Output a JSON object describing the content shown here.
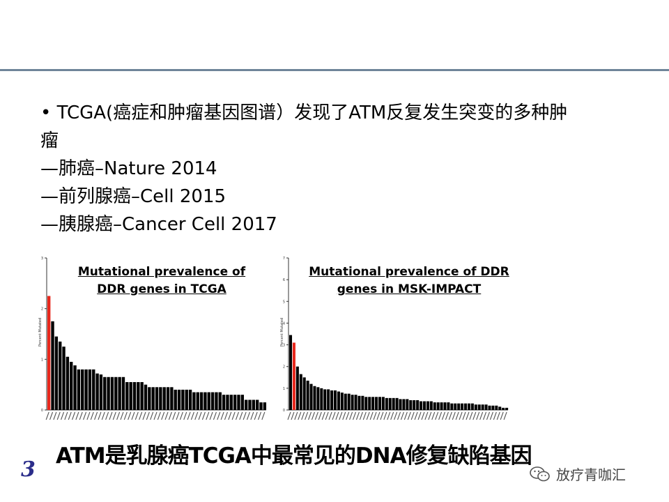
{
  "slide": {
    "bullet_intro": "TCGA(癌症和肿瘤基因图谱）发现了ATM反复发生突变的多种肿",
    "bullet_intro_cont": "瘤",
    "items": [
      "—肺癌–Nature 2014",
      "—前列腺癌–Cell 2015",
      "—胰腺癌–Cancer Cell 2017"
    ],
    "caption": "ATM是乳腺癌TCGA中最常见的DNA修复缺陷基因",
    "slide_number": "3",
    "watermark": "放疗青咖汇",
    "colors": {
      "highlight": "#e8271c",
      "bar": "#000000",
      "rule": "#6f8599",
      "number": "#2b2d8a"
    }
  },
  "chart_data": [
    {
      "type": "bar",
      "title_line1": "Mutational prevalence of",
      "title_line2": "DDR genes in TCGA",
      "ylabel": "Percent Mutated",
      "ylim": [
        0,
        3
      ],
      "yticks": [
        "0",
        "1",
        "2",
        "3"
      ],
      "highlight_index": 0,
      "values": [
        2.25,
        1.75,
        1.45,
        1.35,
        1.25,
        1.05,
        0.95,
        0.88,
        0.8,
        0.8,
        0.8,
        0.8,
        0.8,
        0.72,
        0.7,
        0.65,
        0.65,
        0.65,
        0.65,
        0.65,
        0.65,
        0.55,
        0.55,
        0.55,
        0.55,
        0.55,
        0.5,
        0.45,
        0.45,
        0.45,
        0.45,
        0.45,
        0.45,
        0.45,
        0.4,
        0.4,
        0.4,
        0.4,
        0.4,
        0.35,
        0.35,
        0.35,
        0.35,
        0.35,
        0.35,
        0.35,
        0.35,
        0.3,
        0.3,
        0.3,
        0.3,
        0.3,
        0.3,
        0.2,
        0.2,
        0.2,
        0.2,
        0.15,
        0.15
      ]
    },
    {
      "type": "bar",
      "title_line1": "Mutational prevalence of DDR",
      "title_line2": "genes in MSK-IMPACT",
      "ylabel": "Percent Mutated",
      "ylim": [
        0,
        7
      ],
      "yticks": [
        "0",
        "1",
        "2",
        "3",
        "4",
        "5",
        "6",
        "7"
      ],
      "highlight_index": 1,
      "values": [
        3.45,
        3.1,
        2.0,
        1.65,
        1.5,
        1.35,
        1.2,
        1.1,
        1.05,
        1.0,
        0.95,
        0.95,
        0.9,
        0.9,
        0.85,
        0.8,
        0.75,
        0.75,
        0.7,
        0.7,
        0.65,
        0.65,
        0.6,
        0.6,
        0.6,
        0.6,
        0.6,
        0.6,
        0.55,
        0.55,
        0.55,
        0.55,
        0.5,
        0.5,
        0.5,
        0.45,
        0.45,
        0.45,
        0.4,
        0.4,
        0.4,
        0.4,
        0.35,
        0.35,
        0.35,
        0.35,
        0.35,
        0.3,
        0.3,
        0.3,
        0.3,
        0.3,
        0.3,
        0.3,
        0.25,
        0.25,
        0.25,
        0.25,
        0.2,
        0.2,
        0.2,
        0.15,
        0.1,
        0.1
      ]
    }
  ]
}
